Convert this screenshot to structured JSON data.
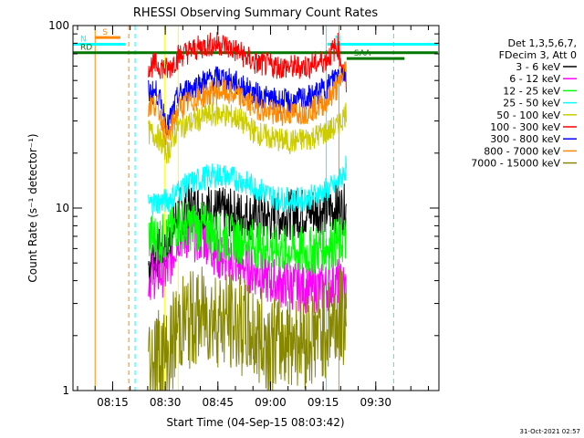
{
  "chart_data": {
    "type": "line",
    "title": "RHESSI Observing Summary Count Rates",
    "xlabel": "Start Time (04-Sep-15 08:03:42)",
    "ylabel": "Count Rate (s⁻¹ detector⁻¹)",
    "y_scale": "log",
    "ylim": [
      1,
      100
    ],
    "xlim": [
      "08:03:42",
      "09:48:00"
    ],
    "x_ticks": [
      "08:15",
      "08:30",
      "08:45",
      "09:00",
      "09:15",
      "09:30"
    ],
    "y_ticks": [
      "1",
      "10",
      "100"
    ],
    "legend_header": [
      "Det 1,3,5,6,7,",
      "FDecim 3, Att 0"
    ],
    "legend_position": "right",
    "series": [
      {
        "name": "3 - 6 keV",
        "color": "#000000",
        "x_min": [
          21.5,
          24,
          27,
          30,
          33,
          38,
          42,
          47,
          52,
          57,
          62,
          67,
          72,
          75.5,
          78
        ],
        "y": [
          4.9,
          5.6,
          6.2,
          9.5,
          10,
          10,
          9.5,
          9.2,
          9.0,
          8.8,
          9.2,
          9.6,
          9.7,
          10,
          9.8
        ]
      },
      {
        "name": "6 - 12 keV",
        "color": "#ff00ff",
        "x_min": [
          21.5,
          24,
          27,
          30,
          33,
          38,
          42,
          47,
          52,
          57,
          62,
          67,
          72,
          75.5,
          78
        ],
        "y": [
          4.2,
          4.4,
          4.5,
          7.2,
          7.0,
          6.8,
          5.3,
          5.0,
          4.5,
          3.9,
          3.8,
          3.6,
          3.7,
          3.9,
          3.6
        ]
      },
      {
        "name": "12 - 25 keV",
        "color": "#00ff00",
        "x_min": [
          21.5,
          24,
          27,
          30,
          33,
          38,
          42,
          47,
          52,
          57,
          62,
          67,
          72,
          75.5,
          78
        ],
        "y": [
          6.9,
          6.8,
          6.9,
          8.4,
          8.0,
          7.8,
          6.9,
          6.8,
          6.4,
          6.0,
          5.9,
          5.7,
          6.2,
          6.5,
          6.8
        ]
      },
      {
        "name": "25 - 50 keV",
        "color": "#00ffff",
        "x_min": [
          21.5,
          24,
          27,
          30,
          33,
          38,
          42,
          47,
          52,
          57,
          62,
          67,
          72,
          75.5,
          78
        ],
        "y": [
          10.5,
          10.8,
          11,
          12.5,
          13.5,
          14.8,
          15.2,
          14.3,
          13.0,
          11.5,
          11.0,
          11.3,
          12.5,
          13.5,
          17
        ]
      },
      {
        "name": "50 - 100 keV",
        "color": "#cccc00",
        "x_min": [
          21.5,
          24,
          27,
          30,
          33,
          38,
          42,
          47,
          52,
          57,
          62,
          67,
          72,
          75.5,
          78
        ],
        "y": [
          26,
          25,
          20,
          28,
          29,
          32,
          33,
          31,
          26,
          24,
          23,
          24,
          26,
          28,
          34
        ]
      },
      {
        "name": "100 - 300 keV",
        "color": "#ff0000",
        "x_min": [
          21.5,
          24,
          27,
          30,
          33,
          38,
          42,
          47,
          52,
          57,
          62,
          67,
          72,
          75.5,
          78
        ],
        "y": [
          60,
          61,
          57,
          68,
          72,
          78,
          80,
          72,
          62,
          60,
          59,
          60,
          65,
          78,
          45
        ]
      },
      {
        "name": "300 - 800 keV",
        "color": "#0000ff",
        "x_min": [
          21.5,
          24,
          27,
          30,
          33,
          38,
          42,
          47,
          52,
          57,
          62,
          67,
          72,
          75.5,
          78
        ],
        "y": [
          43,
          43,
          28,
          41,
          45,
          50,
          52,
          48,
          42,
          39,
          38,
          40,
          45,
          55,
          55
        ]
      },
      {
        "name": "800 - 7000 keV",
        "color": "#ff8800",
        "x_min": [
          21.5,
          24,
          27,
          30,
          33,
          38,
          42,
          47,
          52,
          57,
          62,
          67,
          72,
          75.5,
          78
        ],
        "y": [
          37,
          37,
          24,
          35,
          38,
          42,
          44,
          41,
          36,
          33,
          33,
          34,
          38,
          46,
          60
        ]
      },
      {
        "name": "7000 - 15000 keV",
        "color": "#888800",
        "x_min": [
          21.5,
          24,
          27,
          30,
          33,
          38,
          42,
          47,
          52,
          57,
          62,
          67,
          72,
          75.5,
          78
        ],
        "y": [
          1.5,
          1.6,
          1.5,
          2.3,
          2.4,
          2.6,
          2.5,
          2.3,
          2.0,
          1.8,
          2.0,
          1.9,
          2.2,
          2.5,
          2.5
        ]
      }
    ],
    "flag_bars": [
      {
        "label": "S",
        "color": "#ff8800",
        "x_start_min": 6.3,
        "x_end_min": 13.5,
        "y": 86
      },
      {
        "label": "N",
        "color": "#00ffff",
        "x_start_min": 0,
        "x_end_min": 15,
        "y": 79
      },
      {
        "label": "N",
        "color": "#00ffff",
        "x_start_min": 72.5,
        "x_end_min": 104,
        "y": 79
      },
      {
        "label": "RD",
        "color": "#007700",
        "x_start_min": 0,
        "x_end_min": 104,
        "y": 71
      },
      {
        "label": "SAA",
        "color": "#007700",
        "x_start_min": 78,
        "x_end_min": 94.5,
        "y": 66
      }
    ],
    "vertical_markers": [
      {
        "x_min": 6.3,
        "color": "#ff8800",
        "style": "solid"
      },
      {
        "x_min": 15.9,
        "color": "#ff8800",
        "style": "dashed"
      },
      {
        "x_min": 17.7,
        "color": "#00ffff",
        "style": "dashed"
      },
      {
        "x_min": 26.2,
        "color": "#ffff00",
        "style": "solid"
      },
      {
        "x_min": 30.0,
        "color": "#ffff00",
        "style": "solid"
      },
      {
        "x_min": 72.2,
        "color": "#00ffff",
        "style": "solid"
      },
      {
        "x_min": 75.8,
        "color": "#ff8800",
        "style": "solid"
      },
      {
        "x_min": 91.4,
        "color": "#00ffff",
        "style": "dashed"
      }
    ],
    "grid": false
  },
  "footer": {
    "timestamp": "31-Oct-2021 02:57"
  }
}
